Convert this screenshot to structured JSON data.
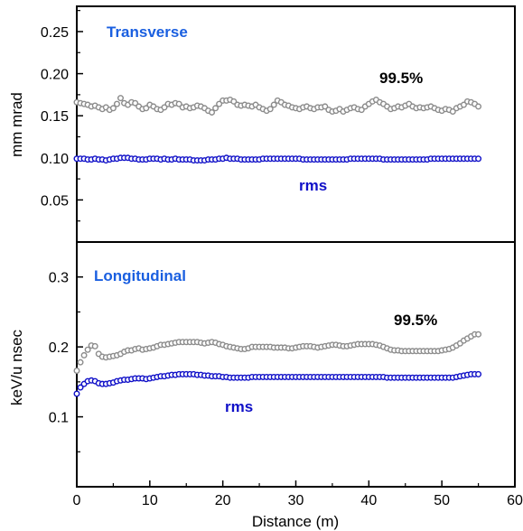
{
  "chart_data": [
    {
      "type": "scatter",
      "title": "Transverse",
      "title_color": "#1a5fe0",
      "xlabel": "",
      "ylabel": "mm mrad",
      "xlim": [
        0,
        60
      ],
      "ylim": [
        0,
        0.28
      ],
      "yticks": [
        0.05,
        0.1,
        0.15,
        0.2,
        0.25
      ],
      "ytick_labels": [
        "0.05",
        "0.10",
        "0.15",
        "0.20",
        "0.25"
      ],
      "yminor": [
        0.025,
        0.075,
        0.125,
        0.175,
        0.225,
        0.275
      ],
      "series": [
        {
          "name": "99.5%",
          "color": "#8c8c8c",
          "x": [
            0,
            0.5,
            1,
            1.5,
            2,
            2.5,
            3,
            3.5,
            4,
            4.5,
            5,
            5.5,
            6,
            6.5,
            7,
            7.5,
            8,
            8.5,
            9,
            9.5,
            10,
            10.5,
            11,
            11.5,
            12,
            12.5,
            13,
            13.5,
            14,
            14.5,
            15,
            15.5,
            16,
            16.5,
            17,
            17.5,
            18,
            18.5,
            19,
            19.5,
            20,
            20.5,
            21,
            21.5,
            22,
            22.5,
            23,
            23.5,
            24,
            24.5,
            25,
            25.5,
            26,
            26.5,
            27,
            27.5,
            28,
            28.5,
            29,
            29.5,
            30,
            30.5,
            31,
            31.5,
            32,
            32.5,
            33,
            33.5,
            34,
            34.5,
            35,
            35.5,
            36,
            36.5,
            37,
            37.5,
            38,
            38.5,
            39,
            39.5,
            40,
            40.5,
            41,
            41.5,
            42,
            42.5,
            43,
            43.5,
            44,
            44.5,
            45,
            45.5,
            46,
            46.5,
            47,
            47.5,
            48,
            48.5,
            49,
            49.5,
            50,
            50.5,
            51,
            51.5,
            52,
            52.5,
            53,
            53.5,
            54,
            54.5,
            55
          ],
          "y": [
            0.166,
            0.165,
            0.164,
            0.163,
            0.161,
            0.162,
            0.16,
            0.158,
            0.16,
            0.157,
            0.159,
            0.164,
            0.171,
            0.165,
            0.163,
            0.166,
            0.165,
            0.161,
            0.158,
            0.159,
            0.163,
            0.161,
            0.158,
            0.157,
            0.16,
            0.164,
            0.163,
            0.165,
            0.164,
            0.16,
            0.161,
            0.159,
            0.16,
            0.162,
            0.161,
            0.159,
            0.156,
            0.154,
            0.159,
            0.164,
            0.168,
            0.168,
            0.169,
            0.167,
            0.163,
            0.162,
            0.163,
            0.162,
            0.161,
            0.163,
            0.16,
            0.158,
            0.156,
            0.158,
            0.163,
            0.168,
            0.166,
            0.163,
            0.162,
            0.16,
            0.159,
            0.158,
            0.16,
            0.161,
            0.159,
            0.158,
            0.16,
            0.16,
            0.161,
            0.157,
            0.155,
            0.156,
            0.158,
            0.155,
            0.157,
            0.159,
            0.16,
            0.158,
            0.157,
            0.161,
            0.164,
            0.167,
            0.169,
            0.166,
            0.164,
            0.161,
            0.158,
            0.159,
            0.161,
            0.16,
            0.162,
            0.164,
            0.161,
            0.159,
            0.16,
            0.159,
            0.16,
            0.161,
            0.159,
            0.157,
            0.156,
            0.158,
            0.157,
            0.155,
            0.159,
            0.161,
            0.163,
            0.167,
            0.166,
            0.164,
            0.161
          ]
        },
        {
          "name": "rms",
          "color": "#1010c8",
          "x": [
            0,
            0.5,
            1,
            1.5,
            2,
            2.5,
            3,
            3.5,
            4,
            4.5,
            5,
            5.5,
            6,
            6.5,
            7,
            7.5,
            8,
            8.5,
            9,
            9.5,
            10,
            10.5,
            11,
            11.5,
            12,
            12.5,
            13,
            13.5,
            14,
            14.5,
            15,
            15.5,
            16,
            16.5,
            17,
            17.5,
            18,
            18.5,
            19,
            19.5,
            20,
            20.5,
            21,
            21.5,
            22,
            22.5,
            23,
            23.5,
            24,
            24.5,
            25,
            25.5,
            26,
            26.5,
            27,
            27.5,
            28,
            28.5,
            29,
            29.5,
            30,
            30.5,
            31,
            31.5,
            32,
            32.5,
            33,
            33.5,
            34,
            34.5,
            35,
            35.5,
            36,
            36.5,
            37,
            37.5,
            38,
            38.5,
            39,
            39.5,
            40,
            40.5,
            41,
            41.5,
            42,
            42.5,
            43,
            43.5,
            44,
            44.5,
            45,
            45.5,
            46,
            46.5,
            47,
            47.5,
            48,
            48.5,
            49,
            49.5,
            50,
            50.5,
            51,
            51.5,
            52,
            52.5,
            53,
            53.5,
            54,
            54.5,
            55
          ],
          "y": [
            0.099,
            0.099,
            0.099,
            0.098,
            0.098,
            0.099,
            0.098,
            0.098,
            0.097,
            0.098,
            0.099,
            0.099,
            0.1,
            0.1,
            0.1,
            0.099,
            0.099,
            0.098,
            0.098,
            0.098,
            0.099,
            0.099,
            0.099,
            0.098,
            0.099,
            0.098,
            0.098,
            0.099,
            0.098,
            0.098,
            0.098,
            0.098,
            0.097,
            0.097,
            0.097,
            0.097,
            0.098,
            0.098,
            0.098,
            0.099,
            0.099,
            0.1,
            0.099,
            0.099,
            0.099,
            0.098,
            0.098,
            0.098,
            0.098,
            0.098,
            0.098,
            0.099,
            0.099,
            0.099,
            0.099,
            0.099,
            0.099,
            0.099,
            0.099,
            0.099,
            0.099,
            0.099,
            0.098,
            0.098,
            0.098,
            0.098,
            0.098,
            0.098,
            0.098,
            0.098,
            0.098,
            0.098,
            0.098,
            0.098,
            0.098,
            0.099,
            0.099,
            0.099,
            0.099,
            0.099,
            0.099,
            0.099,
            0.099,
            0.099,
            0.098,
            0.098,
            0.098,
            0.098,
            0.098,
            0.098,
            0.098,
            0.098,
            0.098,
            0.098,
            0.098,
            0.098,
            0.098,
            0.099,
            0.099,
            0.099,
            0.099,
            0.099,
            0.099,
            0.099,
            0.099,
            0.099,
            0.099,
            0.099,
            0.099,
            0.099,
            0.099
          ]
        }
      ]
    },
    {
      "type": "scatter",
      "title": "Longitudinal",
      "title_color": "#1a5fe0",
      "xlabel": "Distance (m)",
      "ylabel": "keV/u nsec",
      "xlim": [
        0,
        60
      ],
      "ylim": [
        0,
        0.35
      ],
      "xticks": [
        0,
        10,
        20,
        30,
        40,
        50,
        60
      ],
      "xtick_labels": [
        "0",
        "10",
        "20",
        "30",
        "40",
        "50",
        "60"
      ],
      "xminor": [
        5,
        15,
        25,
        35,
        45,
        55
      ],
      "yticks": [
        0.1,
        0.2,
        0.3
      ],
      "ytick_labels": [
        "0.1",
        "0.2",
        "0.3"
      ],
      "yminor": [
        0.05,
        0.15,
        0.25
      ],
      "series": [
        {
          "name": "99.5%",
          "color": "#8c8c8c",
          "x": [
            0,
            0.5,
            1,
            1.5,
            2,
            2.5,
            3,
            3.5,
            4,
            4.5,
            5,
            5.5,
            6,
            6.5,
            7,
            7.5,
            8,
            8.5,
            9,
            9.5,
            10,
            10.5,
            11,
            11.5,
            12,
            12.5,
            13,
            13.5,
            14,
            14.5,
            15,
            15.5,
            16,
            16.5,
            17,
            17.5,
            18,
            18.5,
            19,
            19.5,
            20,
            20.5,
            21,
            21.5,
            22,
            22.5,
            23,
            23.5,
            24,
            24.5,
            25,
            25.5,
            26,
            26.5,
            27,
            27.5,
            28,
            28.5,
            29,
            29.5,
            30,
            30.5,
            31,
            31.5,
            32,
            32.5,
            33,
            33.5,
            34,
            34.5,
            35,
            35.5,
            36,
            36.5,
            37,
            37.5,
            38,
            38.5,
            39,
            39.5,
            40,
            40.5,
            41,
            41.5,
            42,
            42.5,
            43,
            43.5,
            44,
            44.5,
            45,
            45.5,
            46,
            46.5,
            47,
            47.5,
            48,
            48.5,
            49,
            49.5,
            50,
            50.5,
            51,
            51.5,
            52,
            52.5,
            53,
            53.5,
            54,
            54.5,
            55
          ],
          "y": [
            0.166,
            0.178,
            0.188,
            0.196,
            0.202,
            0.201,
            0.19,
            0.186,
            0.185,
            0.186,
            0.187,
            0.188,
            0.19,
            0.193,
            0.195,
            0.195,
            0.197,
            0.198,
            0.196,
            0.197,
            0.198,
            0.199,
            0.201,
            0.203,
            0.203,
            0.204,
            0.205,
            0.206,
            0.207,
            0.207,
            0.207,
            0.207,
            0.207,
            0.207,
            0.206,
            0.205,
            0.206,
            0.207,
            0.206,
            0.204,
            0.203,
            0.201,
            0.2,
            0.199,
            0.198,
            0.197,
            0.197,
            0.198,
            0.2,
            0.2,
            0.2,
            0.2,
            0.2,
            0.2,
            0.199,
            0.199,
            0.199,
            0.199,
            0.198,
            0.198,
            0.199,
            0.2,
            0.201,
            0.201,
            0.201,
            0.2,
            0.199,
            0.2,
            0.201,
            0.202,
            0.203,
            0.203,
            0.202,
            0.201,
            0.201,
            0.202,
            0.203,
            0.204,
            0.204,
            0.204,
            0.204,
            0.204,
            0.203,
            0.202,
            0.2,
            0.198,
            0.196,
            0.195,
            0.195,
            0.194,
            0.194,
            0.194,
            0.194,
            0.194,
            0.194,
            0.194,
            0.194,
            0.194,
            0.194,
            0.194,
            0.195,
            0.196,
            0.197,
            0.199,
            0.202,
            0.205,
            0.209,
            0.212,
            0.215,
            0.218,
            0.218
          ]
        },
        {
          "name": "rms",
          "color": "#1010c8",
          "x": [
            0,
            0.5,
            1,
            1.5,
            2,
            2.5,
            3,
            3.5,
            4,
            4.5,
            5,
            5.5,
            6,
            6.5,
            7,
            7.5,
            8,
            8.5,
            9,
            9.5,
            10,
            10.5,
            11,
            11.5,
            12,
            12.5,
            13,
            13.5,
            14,
            14.5,
            15,
            15.5,
            16,
            16.5,
            17,
            17.5,
            18,
            18.5,
            19,
            19.5,
            20,
            20.5,
            21,
            21.5,
            22,
            22.5,
            23,
            23.5,
            24,
            24.5,
            25,
            25.5,
            26,
            26.5,
            27,
            27.5,
            28,
            28.5,
            29,
            29.5,
            30,
            30.5,
            31,
            31.5,
            32,
            32.5,
            33,
            33.5,
            34,
            34.5,
            35,
            35.5,
            36,
            36.5,
            37,
            37.5,
            38,
            38.5,
            39,
            39.5,
            40,
            40.5,
            41,
            41.5,
            42,
            42.5,
            43,
            43.5,
            44,
            44.5,
            45,
            45.5,
            46,
            46.5,
            47,
            47.5,
            48,
            48.5,
            49,
            49.5,
            50,
            50.5,
            51,
            51.5,
            52,
            52.5,
            53,
            53.5,
            54,
            54.5,
            55
          ],
          "y": [
            0.133,
            0.142,
            0.147,
            0.151,
            0.152,
            0.151,
            0.148,
            0.147,
            0.147,
            0.148,
            0.149,
            0.151,
            0.152,
            0.153,
            0.153,
            0.154,
            0.155,
            0.155,
            0.155,
            0.154,
            0.155,
            0.156,
            0.157,
            0.158,
            0.158,
            0.159,
            0.16,
            0.16,
            0.161,
            0.161,
            0.161,
            0.161,
            0.161,
            0.16,
            0.16,
            0.159,
            0.159,
            0.158,
            0.158,
            0.158,
            0.157,
            0.157,
            0.156,
            0.156,
            0.156,
            0.156,
            0.156,
            0.156,
            0.157,
            0.157,
            0.157,
            0.157,
            0.157,
            0.157,
            0.157,
            0.157,
            0.157,
            0.157,
            0.157,
            0.157,
            0.157,
            0.157,
            0.157,
            0.157,
            0.157,
            0.157,
            0.157,
            0.157,
            0.157,
            0.157,
            0.157,
            0.157,
            0.157,
            0.157,
            0.157,
            0.157,
            0.157,
            0.157,
            0.157,
            0.157,
            0.157,
            0.157,
            0.157,
            0.157,
            0.157,
            0.156,
            0.156,
            0.156,
            0.156,
            0.156,
            0.156,
            0.156,
            0.156,
            0.156,
            0.156,
            0.156,
            0.156,
            0.156,
            0.156,
            0.156,
            0.156,
            0.156,
            0.156,
            0.156,
            0.157,
            0.158,
            0.159,
            0.16,
            0.161,
            0.161,
            0.161
          ]
        }
      ]
    }
  ]
}
